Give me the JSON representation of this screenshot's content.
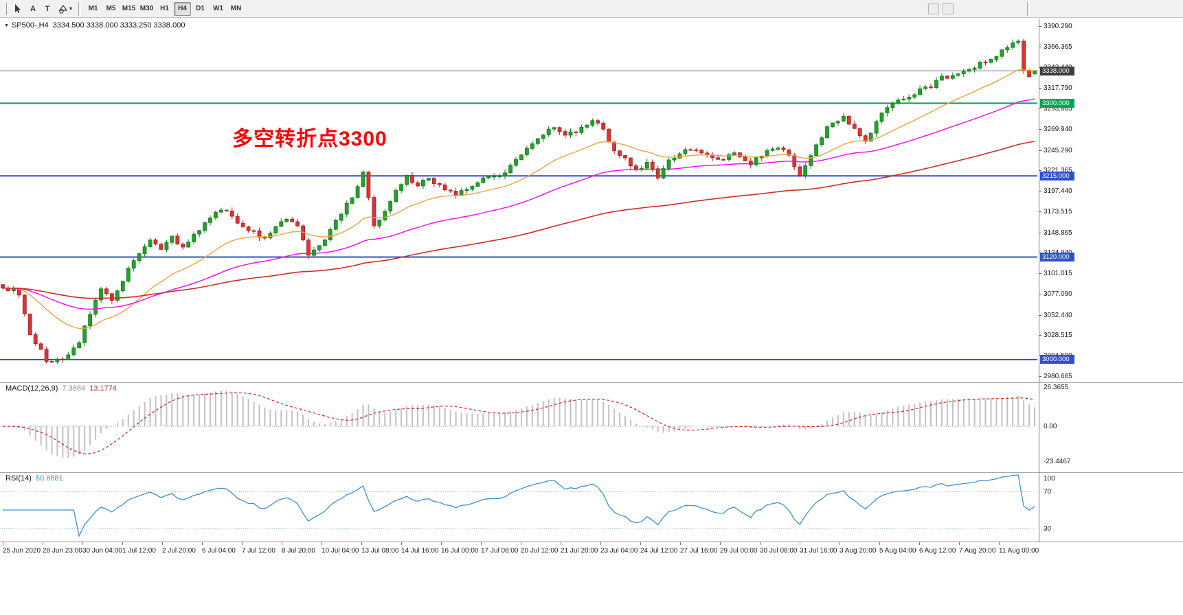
{
  "toolbar": {
    "tools": [
      {
        "name": "cursor-tool",
        "icon": "cursor"
      },
      {
        "name": "text-tool",
        "icon": "A"
      },
      {
        "name": "text-label-tool",
        "icon": "T"
      },
      {
        "name": "shapes-tool",
        "icon": "shapes"
      }
    ],
    "timeframes": [
      {
        "label": "M1"
      },
      {
        "label": "M5"
      },
      {
        "label": "M15"
      },
      {
        "label": "M30"
      },
      {
        "label": "H1"
      },
      {
        "label": "H4",
        "active": true
      },
      {
        "label": "D1"
      },
      {
        "label": "W1"
      },
      {
        "label": "MN"
      }
    ],
    "extra_buttons": [
      "",
      ""
    ]
  },
  "header": {
    "symbol_title": "SP500-,H4",
    "ohlc_text": "3334.500 3338.000 3333.250 3338.000"
  },
  "annotation": {
    "text": "多空转折点3300",
    "color": "#ff0000"
  },
  "macd": {
    "name": "MACD(12,26,9)",
    "value_main": "7.3684",
    "value_signal": "13.1774",
    "axis": [
      "26.3655",
      "0.00",
      "-23.4467"
    ]
  },
  "rsi": {
    "name": "RSI(14)",
    "value": "50.6881",
    "axis": [
      "100",
      "70",
      "30"
    ]
  },
  "levels": [
    {
      "price": 3338.0,
      "label": "3338.000",
      "line": "bid_line",
      "badge": "bid_badge",
      "width": 1
    },
    {
      "price": 3300.0,
      "label": "3300.000",
      "line": "level_green",
      "badge": "level_green",
      "width": 2
    },
    {
      "price": 3215.0,
      "label": "3215.000",
      "line": "level_blue",
      "badge": "level_blue",
      "width": 2
    },
    {
      "price": 3120.0,
      "label": "3120.000",
      "line": "level_blue",
      "badge": "level_blue",
      "width": 2
    },
    {
      "price": 3000.0,
      "label": "3000.000",
      "line": "level_blue",
      "badge": "level_blue",
      "width": 2
    }
  ],
  "price_axis_ticks": [
    "3390.290",
    "3366.365",
    "3342.440",
    "3317.790",
    "3293.865",
    "3269.940",
    "3245.290",
    "3221.365",
    "3197.440",
    "3173.515",
    "3148.865",
    "3124.940",
    "3101.015",
    "3077.090",
    "3052.440",
    "3028.515",
    "3004.590",
    "2980.665"
  ],
  "colors": {
    "bull": "#22a32a",
    "bull_border": "#157a1b",
    "bear": "#e03232",
    "bear_border": "#a81f1f",
    "level_blue": "#2d52cc",
    "level_green": "#00a651",
    "bid_line": "#708090",
    "bid_badge": "#3f3f3f",
    "macd_bar": "#c2c2c2",
    "macd_signal": "#cf2626",
    "rsi_line": "#3f8fd6",
    "rsi_level": "#93a8cc",
    "annotation": "#ff0000"
  },
  "chart_data": {
    "type": "candlestick",
    "symbol": "SP500-",
    "timeframe": "H4",
    "visible_price_range": [
      2980.665,
      3390.29
    ],
    "current_ohlc": {
      "open": 3334.5,
      "high": 3338.0,
      "low": 3333.25,
      "close": 3338.0
    },
    "candle_count": 190,
    "price_waypoints": [
      [
        0,
        3085
      ],
      [
        3,
        3078
      ],
      [
        5,
        3030
      ],
      [
        8,
        3000
      ],
      [
        11,
        2998
      ],
      [
        14,
        3022
      ],
      [
        16,
        3055
      ],
      [
        18,
        3085
      ],
      [
        20,
        3068
      ],
      [
        22,
        3092
      ],
      [
        24,
        3118
      ],
      [
        27,
        3140
      ],
      [
        29,
        3128
      ],
      [
        31,
        3145
      ],
      [
        33,
        3130
      ],
      [
        36,
        3152
      ],
      [
        38,
        3168
      ],
      [
        41,
        3176
      ],
      [
        43,
        3158
      ],
      [
        46,
        3150
      ],
      [
        48,
        3140
      ],
      [
        50,
        3154
      ],
      [
        52,
        3165
      ],
      [
        54,
        3158
      ],
      [
        56,
        3124
      ],
      [
        58,
        3132
      ],
      [
        60,
        3150
      ],
      [
        62,
        3172
      ],
      [
        64,
        3190
      ],
      [
        66,
        3218
      ],
      [
        68,
        3158
      ],
      [
        70,
        3172
      ],
      [
        72,
        3198
      ],
      [
        74,
        3214
      ],
      [
        76,
        3205
      ],
      [
        78,
        3210
      ],
      [
        81,
        3200
      ],
      [
        83,
        3194
      ],
      [
        86,
        3205
      ],
      [
        88,
        3212
      ],
      [
        91,
        3216
      ],
      [
        93,
        3226
      ],
      [
        96,
        3246
      ],
      [
        98,
        3260
      ],
      [
        101,
        3272
      ],
      [
        103,
        3264
      ],
      [
        106,
        3270
      ],
      [
        108,
        3282
      ],
      [
        110,
        3268
      ],
      [
        112,
        3244
      ],
      [
        114,
        3234
      ],
      [
        116,
        3222
      ],
      [
        118,
        3230
      ],
      [
        120,
        3214
      ],
      [
        122,
        3234
      ],
      [
        124,
        3242
      ],
      [
        127,
        3246
      ],
      [
        129,
        3238
      ],
      [
        132,
        3234
      ],
      [
        134,
        3242
      ],
      [
        137,
        3230
      ],
      [
        139,
        3240
      ],
      [
        142,
        3250
      ],
      [
        144,
        3238
      ],
      [
        146,
        3218
      ],
      [
        149,
        3252
      ],
      [
        151,
        3270
      ],
      [
        154,
        3286
      ],
      [
        156,
        3268
      ],
      [
        158,
        3254
      ],
      [
        160,
        3280
      ],
      [
        162,
        3296
      ],
      [
        165,
        3306
      ],
      [
        167,
        3312
      ],
      [
        170,
        3320
      ],
      [
        172,
        3330
      ],
      [
        175,
        3334
      ],
      [
        177,
        3340
      ],
      [
        180,
        3350
      ],
      [
        182,
        3356
      ],
      [
        184,
        3366
      ],
      [
        186,
        3374
      ],
      [
        187,
        3338
      ],
      [
        188,
        3332
      ],
      [
        189,
        3338
      ]
    ],
    "horizontal_levels": [
      3338.0,
      3300.0,
      3215.0,
      3120.0,
      3000.0
    ],
    "moving_averages": [
      {
        "name": "fast-ma",
        "period": 21,
        "color": "#efa43b"
      },
      {
        "name": "mid-ma",
        "period": 55,
        "color": "#ff00ff"
      },
      {
        "name": "slow-ma",
        "period": 130,
        "color": "#d22a2a"
      }
    ],
    "indicators": [
      {
        "name": "MACD",
        "params": [
          12,
          26,
          9
        ],
        "displayed_values": [
          7.3684,
          13.1774
        ],
        "axis_range": [
          -23.4467,
          26.3655
        ]
      },
      {
        "name": "RSI",
        "params": [
          14
        ],
        "displayed_value": 50.6881,
        "levels": [
          70,
          30
        ]
      }
    ],
    "time_labels": [
      "25 Jun 2020",
      "28 Jun 23:00",
      "30 Jun 04:00",
      "1 Jul 12:00",
      "2 Jul 20:00",
      "6 Jul 04:00",
      "7 Jul 12:00",
      "8 Jul 20:00",
      "10 Jul 04:00",
      "13 Jul 08:00",
      "14 Jul 16:00",
      "16 Jul 00:00",
      "17 Jul 08:00",
      "20 Jul 12:00",
      "21 Jul 20:00",
      "23 Jul 04:00",
      "24 Jul 12:00",
      "27 Jul 16:00",
      "29 Jul 00:00",
      "30 Jul 08:00",
      "31 Jul 16:00",
      "3 Aug 20:00",
      "5 Aug 04:00",
      "6 Aug 12:00",
      "7 Aug 20:00",
      "11 Aug 00:00"
    ]
  }
}
